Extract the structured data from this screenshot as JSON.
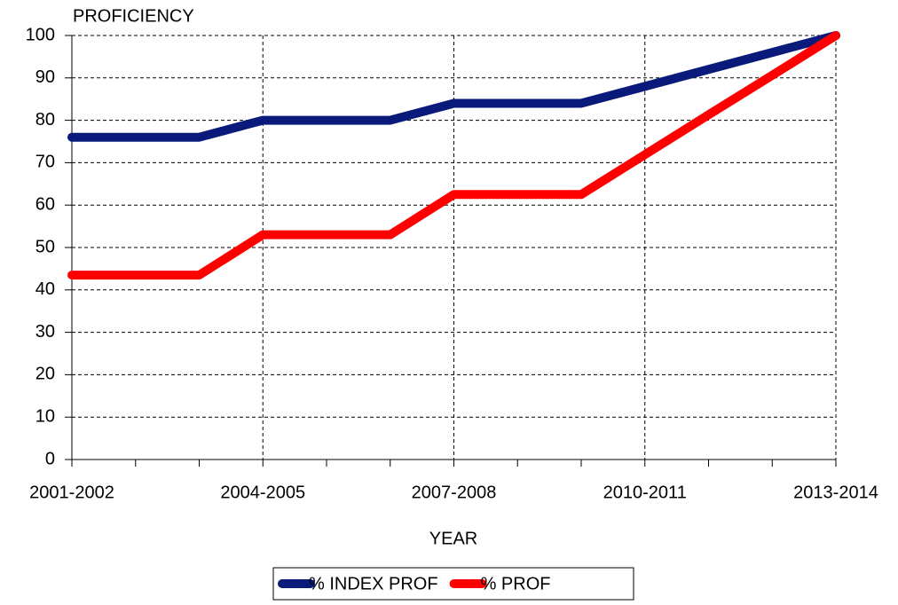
{
  "chart_data": {
    "type": "line",
    "title": "PROFICIENCY",
    "x_label": "YEAR",
    "categories": [
      "2001-2002",
      null,
      null,
      "2004-2005",
      null,
      null,
      "2007-2008",
      null,
      null,
      "2010-2011",
      null,
      null,
      "2013-2014"
    ],
    "series": [
      {
        "name": "% INDEX PROF",
        "color": "#0a1a7a",
        "values": [
          76,
          76,
          76,
          80,
          80,
          80,
          84,
          84,
          84,
          88,
          92,
          96,
          100
        ]
      },
      {
        "name": "% PROF",
        "color": "#ff0000",
        "values": [
          43.5,
          43.5,
          43.5,
          53,
          53,
          53,
          62.5,
          62.5,
          62.5,
          71.9,
          81.3,
          90.6,
          100
        ]
      }
    ],
    "ylim": [
      0,
      100
    ],
    "yticks": [
      0,
      10,
      20,
      30,
      40,
      50,
      60,
      70,
      80,
      90,
      100
    ],
    "grid": true,
    "legend": "bottom"
  }
}
